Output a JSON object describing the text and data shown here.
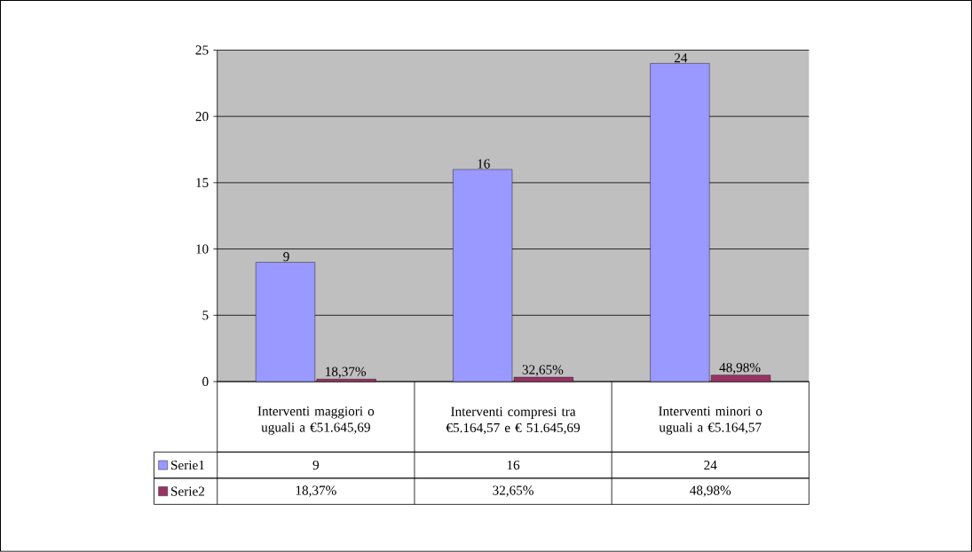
{
  "chart_data": {
    "type": "bar",
    "categories": [
      "Interventi maggiori o uguali a  €51.645,69",
      "Interventi compresi tra €5.164,57 e  € 51.645,69",
      "Interventi minori o uguali a  €5.164,57"
    ],
    "series": [
      {
        "name": "Serie1",
        "color": "#9999ff",
        "values": [
          9,
          16,
          24
        ],
        "value_labels": [
          "9",
          "16",
          "24"
        ]
      },
      {
        "name": "Serie2",
        "color": "#993366",
        "values": [
          0.1837,
          0.3265,
          0.4898
        ],
        "value_labels": [
          "18,37%",
          "32,65%",
          "48,98%"
        ]
      }
    ],
    "ylim": [
      0,
      25
    ],
    "yticks": [
      0,
      5,
      10,
      15,
      20,
      25
    ],
    "grid": "y",
    "legend": "bottom"
  }
}
